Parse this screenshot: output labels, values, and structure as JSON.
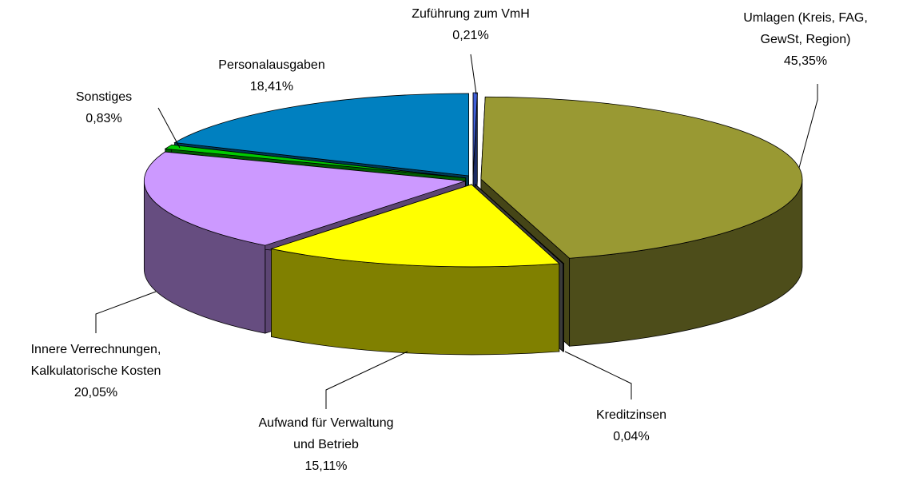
{
  "chart_data": {
    "type": "pie",
    "three_d": true,
    "exploded": true,
    "categories": [
      "Zuführung zum VmH",
      "Umlagen (Kreis, FAG, GewSt, Region)",
      "Kreditzinsen",
      "Aufwand für Verwaltung und Betrieb",
      "Innere Verrechnungen, Kalkulatorische Kosten",
      "Sonstiges",
      "Personalausgaben"
    ],
    "values": [
      0.21,
      45.35,
      0.04,
      15.11,
      20.05,
      0.83,
      18.41
    ],
    "value_labels": [
      "0,21%",
      "45,35%",
      "0,04%",
      "15,11%",
      "20,05%",
      "0,83%",
      "18,41%"
    ],
    "colors": [
      "#3f5fd8",
      "#999933",
      "#808080",
      "#ffff00",
      "#cc99ff",
      "#00cc00",
      "#0080c0"
    ]
  }
}
